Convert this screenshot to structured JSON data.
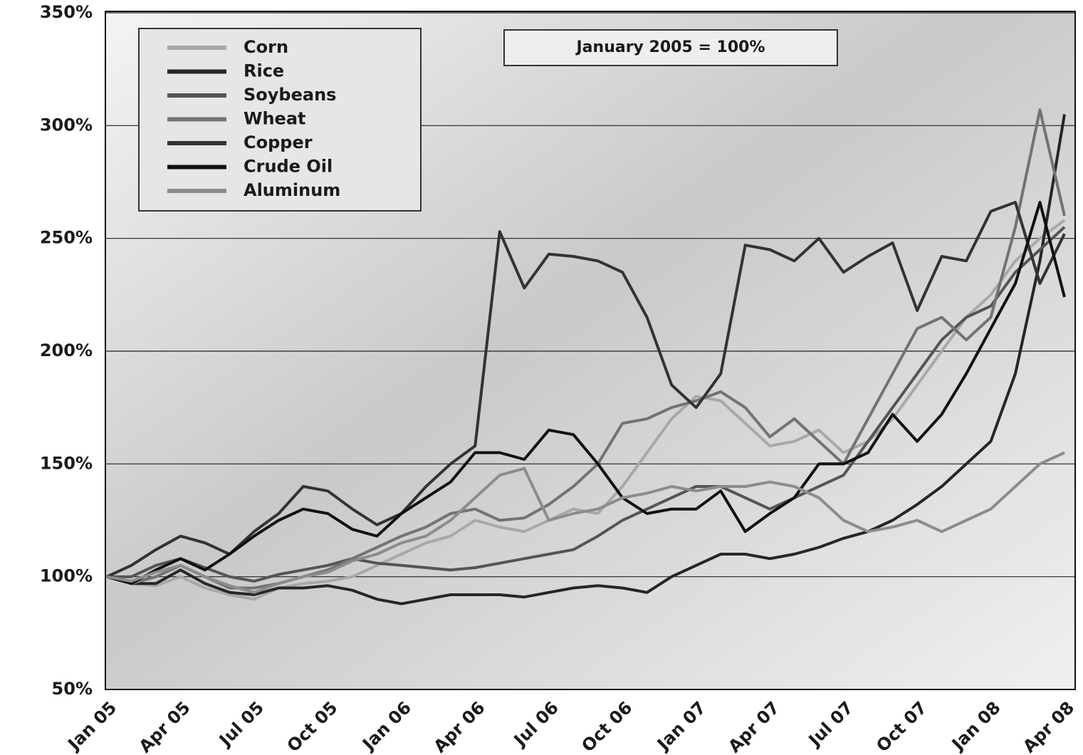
{
  "chart_data": {
    "type": "line",
    "annotation": "January 2005 = 100%",
    "categories": [
      "Jan 05",
      null,
      null,
      "Apr 05",
      null,
      null,
      "Jul 05",
      null,
      null,
      "Oct 05",
      null,
      null,
      "Jan 06",
      null,
      null,
      "Apr 06",
      null,
      null,
      "Jul 06",
      null,
      null,
      "Oct 06",
      null,
      null,
      "Jan 07",
      null,
      null,
      "Apr 07",
      null,
      null,
      "Jul 07",
      null,
      null,
      "Oct 07",
      null,
      null,
      "Jan 08",
      null,
      null,
      "Apr 08"
    ],
    "ylim": [
      50,
      350
    ],
    "yticks": [
      {
        "value": 50,
        "label": "50%"
      },
      {
        "value": 100,
        "label": "100%"
      },
      {
        "value": 150,
        "label": "150%"
      },
      {
        "value": 200,
        "label": "200%"
      },
      {
        "value": 250,
        "label": "250%"
      },
      {
        "value": 300,
        "label": "300%"
      },
      {
        "value": 350,
        "label": "350%"
      }
    ],
    "grid": true,
    "legend": "top-left",
    "series": [
      {
        "name": "Corn",
        "color": "#a8a8a8",
        "values": [
          100,
          97,
          96,
          100,
          95,
          92,
          90,
          95,
          97,
          98,
          100,
          105,
          110,
          115,
          118,
          125,
          122,
          120,
          125,
          130,
          128,
          140,
          155,
          170,
          180,
          178,
          168,
          158,
          160,
          165,
          155,
          160,
          170,
          185,
          200,
          215,
          225,
          240,
          250,
          258
        ]
      },
      {
        "name": "Rice",
        "color": "#262626",
        "values": [
          100,
          97,
          97,
          103,
          97,
          93,
          92,
          95,
          95,
          96,
          94,
          90,
          88,
          90,
          92,
          92,
          92,
          91,
          93,
          95,
          96,
          95,
          93,
          100,
          105,
          110,
          110,
          108,
          110,
          113,
          117,
          120,
          125,
          132,
          140,
          150,
          160,
          190,
          240,
          305
        ]
      },
      {
        "name": "Soybeans",
        "color": "#555555",
        "values": [
          100,
          100,
          105,
          108,
          104,
          100,
          98,
          101,
          103,
          105,
          108,
          106,
          105,
          104,
          103,
          104,
          106,
          108,
          110,
          112,
          118,
          125,
          130,
          135,
          140,
          140,
          135,
          130,
          135,
          140,
          145,
          160,
          175,
          190,
          205,
          215,
          220,
          235,
          245,
          255
        ]
      },
      {
        "name": "Wheat",
        "color": "#737373",
        "values": [
          100,
          97,
          100,
          105,
          100,
          95,
          95,
          97,
          100,
          103,
          108,
          113,
          118,
          122,
          128,
          130,
          125,
          126,
          132,
          140,
          150,
          168,
          170,
          175,
          178,
          182,
          175,
          162,
          170,
          160,
          150,
          170,
          190,
          210,
          215,
          205,
          215,
          255,
          307,
          260
        ]
      },
      {
        "name": "Copper",
        "color": "#333333",
        "values": [
          100,
          105,
          112,
          118,
          115,
          110,
          120,
          128,
          140,
          138,
          130,
          123,
          128,
          140,
          150,
          158,
          253,
          228,
          243,
          242,
          240,
          235,
          215,
          185,
          175,
          190,
          247,
          245,
          240,
          250,
          235,
          242,
          248,
          218,
          242,
          240,
          262,
          266,
          230,
          252
        ]
      },
      {
        "name": "Crude Oil",
        "color": "#111111",
        "values": [
          100,
          97,
          103,
          108,
          103,
          110,
          118,
          125,
          130,
          128,
          121,
          118,
          128,
          135,
          142,
          155,
          155,
          152,
          165,
          163,
          150,
          135,
          128,
          130,
          130,
          138,
          120,
          128,
          135,
          150,
          150,
          155,
          172,
          160,
          172,
          190,
          210,
          230,
          266,
          224
        ]
      },
      {
        "name": "Aluminum",
        "color": "#8c8c8c",
        "values": [
          100,
          98,
          102,
          105,
          100,
          96,
          93,
          97,
          100,
          102,
          107,
          110,
          115,
          118,
          125,
          135,
          145,
          148,
          125,
          128,
          130,
          135,
          137,
          140,
          138,
          140,
          140,
          142,
          140,
          135,
          125,
          120,
          122,
          125,
          120,
          125,
          130,
          140,
          150,
          155
        ]
      }
    ]
  }
}
